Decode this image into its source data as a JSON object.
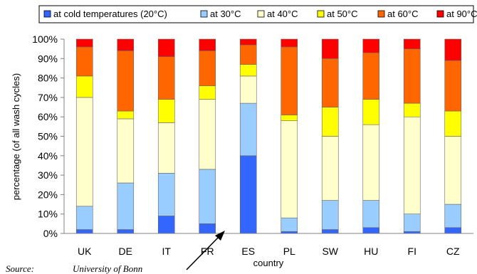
{
  "chart_data": {
    "type": "bar",
    "stacked": true,
    "categories": [
      "UK",
      "DE",
      "IT",
      "FR",
      "ES",
      "PL",
      "SW",
      "HU",
      "FI",
      "CZ"
    ],
    "series": [
      {
        "name": "at cold temperatures (20°C)",
        "color": "#3366ff",
        "values": [
          2,
          2,
          9,
          5,
          40,
          1,
          2,
          3,
          1,
          3
        ]
      },
      {
        "name": "at 30°C",
        "color": "#99ccff",
        "values": [
          12,
          24,
          22,
          28,
          27,
          7,
          15,
          14,
          9,
          12
        ]
      },
      {
        "name": "at 40°C",
        "color": "#ffffcc",
        "values": [
          56,
          33,
          26,
          36,
          14,
          50,
          33,
          39,
          50,
          35
        ]
      },
      {
        "name": "at 50°C",
        "color": "#ffff00",
        "values": [
          11,
          4,
          12,
          7,
          6,
          3,
          15,
          13,
          7,
          13
        ]
      },
      {
        "name": "at 60°C",
        "color": "#ff6600",
        "values": [
          15,
          31,
          22,
          18,
          10,
          35,
          25,
          24,
          28,
          26
        ]
      },
      {
        "name": "at 90°C",
        "color": "#ff0000",
        "values": [
          4,
          6,
          9,
          6,
          3,
          4,
          10,
          7,
          5,
          11
        ]
      }
    ],
    "ylabel": "percentage (of all wash cycles)",
    "xlabel": "country",
    "ylim": [
      0,
      100
    ],
    "yticks": [
      "0%",
      "10%",
      "20%",
      "30%",
      "40%",
      "50%",
      "60%",
      "70%",
      "80%",
      "90%",
      "100%"
    ],
    "legend": "top",
    "grid": false
  },
  "source": {
    "label": "Source:",
    "value": "University of Bonn"
  }
}
